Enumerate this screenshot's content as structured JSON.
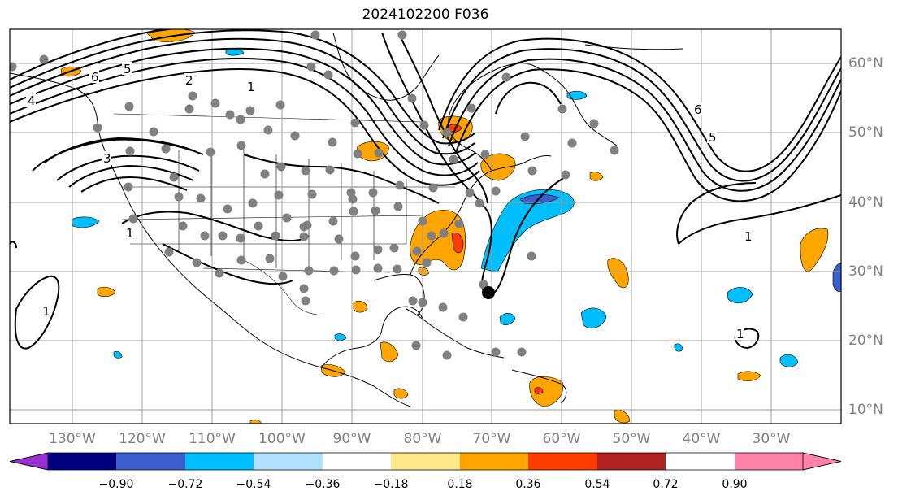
{
  "title": "2024102200 F036",
  "colors": {
    "map_border": "#000000",
    "grid": "#a0a0a0",
    "contour": "#000000",
    "station": "#808080",
    "center_marker": "#000000"
  },
  "longitude_labels": [
    "130°W",
    "120°W",
    "110°W",
    "100°W",
    "90°W",
    "80°W",
    "70°W",
    "60°W",
    "50°W",
    "40°W",
    "30°W"
  ],
  "latitude_labels": [
    "60°N",
    "50°N",
    "40°N",
    "30°N",
    "20°N",
    "10°N"
  ],
  "contour_labels": [
    "6",
    "5",
    "4",
    "3",
    "2",
    "1",
    "1",
    "6",
    "5",
    "1",
    "1",
    "1"
  ],
  "colorbar": {
    "colors": [
      "#9b30d0",
      "#000080",
      "#3a5fcd",
      "#00bfff",
      "#b0e2ff",
      "#ffffff",
      "#ffe88a",
      "#ffa500",
      "#ff3c00",
      "#b22222",
      "#ff82ab"
    ],
    "tick_labels": [
      "−0.90",
      "−0.72",
      "−0.54",
      "−0.36",
      "−0.18",
      "0.18",
      "0.36",
      "0.54",
      "0.72",
      "0.90"
    ]
  }
}
